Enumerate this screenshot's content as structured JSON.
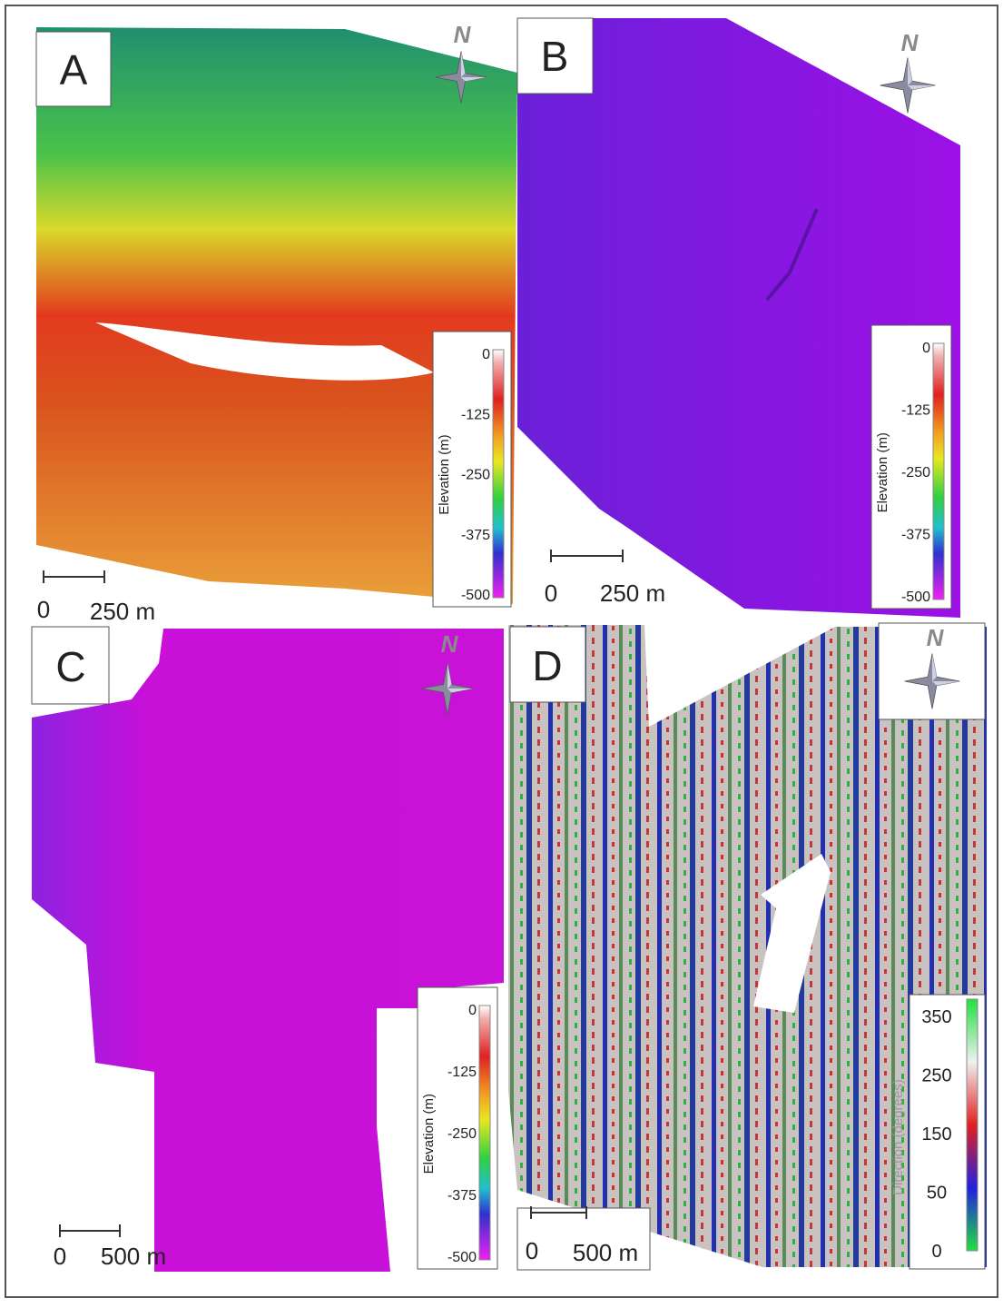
{
  "panels": [
    {
      "label": "A",
      "north": "N",
      "scale": {
        "zero": "0",
        "distance": "250 m"
      },
      "legend": {
        "title": "Elevation (m)",
        "ticks": [
          "0",
          "-125",
          "-250",
          "-375",
          "-500"
        ]
      }
    },
    {
      "label": "B",
      "north": "N",
      "scale": {
        "zero": "0",
        "distance": "250 m"
      },
      "legend": {
        "title": "Elevation (m)",
        "ticks": [
          "0",
          "-125",
          "-250",
          "-375",
          "-500"
        ]
      }
    },
    {
      "label": "C",
      "north": "N",
      "scale": {
        "zero": "0",
        "distance": "500 m"
      },
      "legend": {
        "title": "Elevation (m)",
        "ticks": [
          "0",
          "-125",
          "-250",
          "-375",
          "-500"
        ]
      }
    },
    {
      "label": "D",
      "north": "N",
      "scale": {
        "zero": "0",
        "distance": "500 m"
      },
      "legend": {
        "title": "Direction (degrees)",
        "ticks": [
          "350",
          "250",
          "150",
          "50",
          "0"
        ]
      }
    }
  ]
}
